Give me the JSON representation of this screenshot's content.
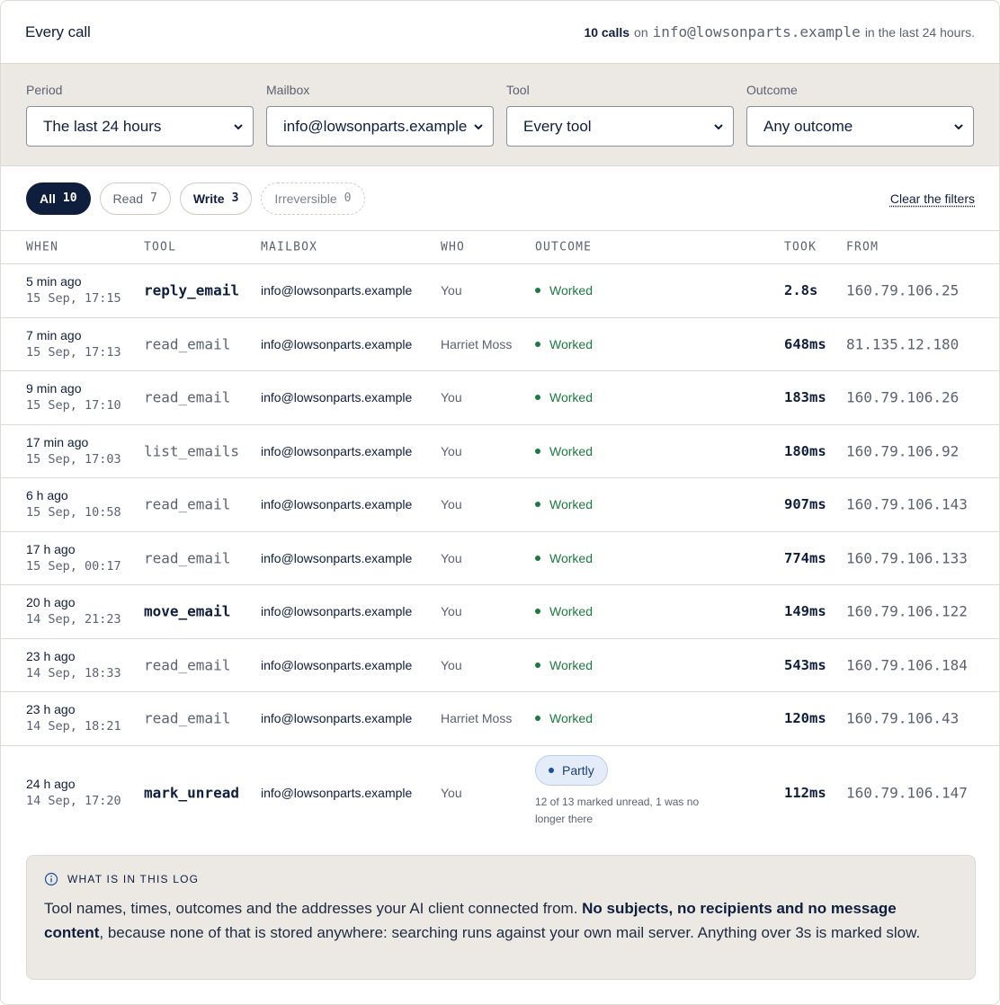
{
  "header": {
    "title": "Every call",
    "count": "10 calls",
    "on": "on",
    "mailbox": "info@lowsonparts.example",
    "period": "in the last 24 hours."
  },
  "filters": [
    {
      "label": "Period",
      "value": "The last 24 hours"
    },
    {
      "label": "Mailbox",
      "value": "info@lowsonparts.example"
    },
    {
      "label": "Tool",
      "value": "Every tool"
    },
    {
      "label": "Outcome",
      "value": "Any outcome"
    }
  ],
  "pills": [
    {
      "label": "All",
      "count": "10",
      "state": "active"
    },
    {
      "label": "Read",
      "count": "7",
      "state": "normal"
    },
    {
      "label": "Write",
      "count": "3",
      "state": "bold"
    },
    {
      "label": "Irreversible",
      "count": "0",
      "state": "dashed"
    }
  ],
  "clear_filters": "Clear the filters",
  "columns": {
    "when": "WHEN",
    "tool": "TOOL",
    "mailbox": "MAILBOX",
    "who": "WHO",
    "outcome": "OUTCOME",
    "took": "TOOK",
    "from": "FROM"
  },
  "rows": [
    {
      "rel": "5 min ago",
      "abs": "15 Sep, 17:15",
      "tool": "reply_email",
      "write": true,
      "mailbox": "info@lowsonparts.example",
      "who": "You",
      "outcome": "Worked",
      "took": "2.8s",
      "from": "160.79.106.25"
    },
    {
      "rel": "7 min ago",
      "abs": "15 Sep, 17:13",
      "tool": "read_email",
      "write": false,
      "mailbox": "info@lowsonparts.example",
      "who": "Harriet Moss",
      "outcome": "Worked",
      "took": "648ms",
      "from": "81.135.12.180"
    },
    {
      "rel": "9 min ago",
      "abs": "15 Sep, 17:10",
      "tool": "read_email",
      "write": false,
      "mailbox": "info@lowsonparts.example",
      "who": "You",
      "outcome": "Worked",
      "took": "183ms",
      "from": "160.79.106.26"
    },
    {
      "rel": "17 min ago",
      "abs": "15 Sep, 17:03",
      "tool": "list_emails",
      "write": false,
      "mailbox": "info@lowsonparts.example",
      "who": "You",
      "outcome": "Worked",
      "took": "180ms",
      "from": "160.79.106.92"
    },
    {
      "rel": "6 h ago",
      "abs": "15 Sep, 10:58",
      "tool": "read_email",
      "write": false,
      "mailbox": "info@lowsonparts.example",
      "who": "You",
      "outcome": "Worked",
      "took": "907ms",
      "from": "160.79.106.143"
    },
    {
      "rel": "17 h ago",
      "abs": "15 Sep, 00:17",
      "tool": "read_email",
      "write": false,
      "mailbox": "info@lowsonparts.example",
      "who": "You",
      "outcome": "Worked",
      "took": "774ms",
      "from": "160.79.106.133"
    },
    {
      "rel": "20 h ago",
      "abs": "14 Sep, 21:23",
      "tool": "move_email",
      "write": true,
      "mailbox": "info@lowsonparts.example",
      "who": "You",
      "outcome": "Worked",
      "took": "149ms",
      "from": "160.79.106.122"
    },
    {
      "rel": "23 h ago",
      "abs": "14 Sep, 18:33",
      "tool": "read_email",
      "write": false,
      "mailbox": "info@lowsonparts.example",
      "who": "You",
      "outcome": "Worked",
      "took": "543ms",
      "from": "160.79.106.184"
    },
    {
      "rel": "23 h ago",
      "abs": "14 Sep, 18:21",
      "tool": "read_email",
      "write": false,
      "mailbox": "info@lowsonparts.example",
      "who": "Harriet Moss",
      "outcome": "Worked",
      "took": "120ms",
      "from": "160.79.106.43"
    }
  ],
  "last_row": {
    "rel": "24 h ago",
    "abs": "14 Sep, 17:20",
    "tool": "mark_unread",
    "mailbox": "info@lowsonparts.example",
    "who": "You",
    "outcome": "Partly",
    "note": "12 of 13 marked unread, 1 was no longer there",
    "took": "112ms",
    "from": "160.79.106.147"
  },
  "info": {
    "heading": "WHAT IS IN THIS LOG",
    "text_1": "Tool names, times, outcomes and the addresses your AI client connected from. ",
    "text_bold": "No subjects, no recipients and no message content",
    "text_2": ", because none of that is stored anywhere: searching runs against your own mail server. Anything over 3s is marked slow."
  },
  "colors": {
    "navy": "#0f1e3d",
    "green": "#1c7a3f",
    "partly_bg": "#e3ecf8"
  },
  "icons": {
    "select": "chevron-down-icon",
    "info": "info-circle-icon",
    "status": "status-dot-icon"
  }
}
